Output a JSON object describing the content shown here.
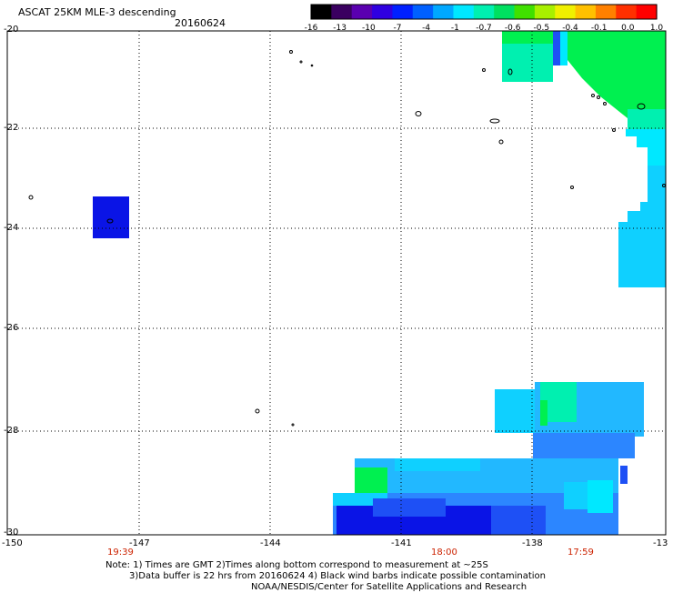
{
  "header": {
    "title": "ASCAT 25KM MLE-3 descending",
    "date": "20160624"
  },
  "colorbar": {
    "labels": [
      "-16",
      "-13",
      "-10",
      "-7",
      "-4",
      "-1",
      "-0.7",
      "-0.6",
      "-0.5",
      "-0.4",
      "-0.1",
      "0.0",
      "1.0"
    ],
    "colors": [
      "#000000",
      "#3a0060",
      "#5a00b0",
      "#2f00e0",
      "#0020ff",
      "#0060ff",
      "#00a8ff",
      "#00e8ff",
      "#00f0b0",
      "#00e060",
      "#40e000",
      "#a8f000",
      "#f0f000",
      "#ffc000",
      "#ff8000",
      "#ff3000",
      "#ff0000"
    ]
  },
  "axes": {
    "y_labels": [
      "-20",
      "-22",
      "-24",
      "-26",
      "-28",
      "-30"
    ],
    "x_labels": [
      "-150",
      "-147",
      "-144",
      "-141",
      "-138",
      "-13"
    ],
    "times": [
      "19:39",
      "18:00",
      "17:59"
    ]
  },
  "notes": {
    "line1": "Note: 1) Times are GMT 2)Times along bottom correspond to measurement at ~25S",
    "line2": "3)Data buffer is 22 hrs from 20160624 4) Black wind barbs indicate possible contamination",
    "line3": "NOAA/NESDIS/Center for Satellite Applications and Research"
  },
  "colors": {
    "deep_blue": "#0a14e6",
    "blue": "#1e50f5",
    "mid_blue": "#2c86ff",
    "sky": "#22b8ff",
    "light_sky": "#0fd0ff",
    "cyan": "#00e8ff",
    "aqua": "#00f0c0",
    "green": "#00f050"
  }
}
